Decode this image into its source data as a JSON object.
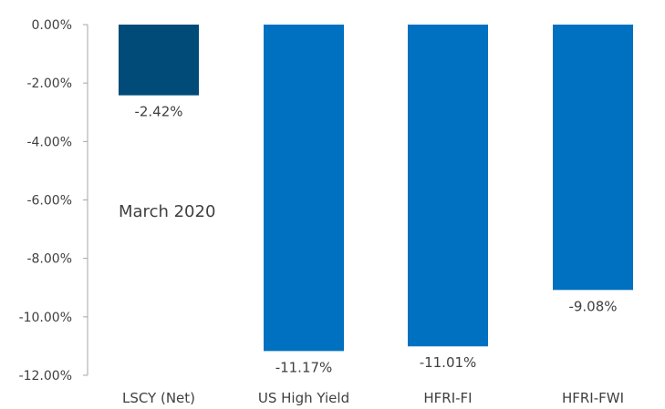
{
  "chart_data": {
    "type": "bar",
    "categories": [
      "LSCY (Net)",
      "US High Yield",
      "HFRI-FI",
      "HFRI-FWI"
    ],
    "values": [
      -2.42,
      -11.17,
      -11.01,
      -9.08
    ],
    "data_labels": [
      "-2.42%",
      "-11.17%",
      "-11.01%",
      "-9.08%"
    ],
    "colors": [
      "#004b78",
      "#0070c0",
      "#0070c0",
      "#0070c0"
    ],
    "ylim": [
      -12,
      0
    ],
    "yticks": [
      0,
      -2,
      -4,
      -6,
      -8,
      -10,
      -12
    ],
    "ytick_labels": [
      "0.00%",
      "-2.00%",
      "-4.00%",
      "-6.00%",
      "-8.00%",
      "-10.00%",
      "-12.00%"
    ],
    "annotation": "March 2020",
    "grid": false,
    "axis_color": "#a6a6a6"
  }
}
